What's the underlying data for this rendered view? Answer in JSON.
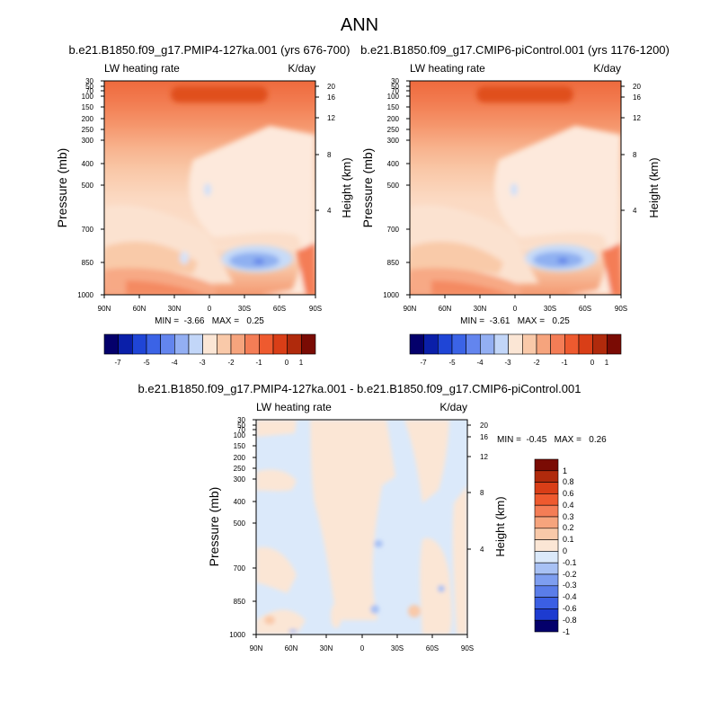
{
  "page": {
    "title": "ANN"
  },
  "chart_data": [
    {
      "type": "heatmap",
      "title": "b.e21.B1850.f09_g17.PMIP4-127ka.001 (yrs 676-700)",
      "left_label": "LW heating rate",
      "right_label": "K/day",
      "xlabel": "",
      "ylabel": "Pressure (mb)",
      "ylabel_right": "Height (km)",
      "x_ticks": [
        "90N",
        "60N",
        "30N",
        "0",
        "30S",
        "60S",
        "90S"
      ],
      "y_ticks": [
        "30",
        "50",
        "70",
        "100",
        "150",
        "200",
        "250",
        "300",
        "400",
        "500",
        "700",
        "850",
        "1000"
      ],
      "y_right_ticks": [
        "20",
        "16",
        "12",
        "8",
        "4"
      ],
      "y_scale": "log pressure",
      "min_text": "MIN =  -3.66   MAX =   0.25",
      "min": -3.66,
      "max": 0.25,
      "colorbar_labels": [
        "-7",
        "-5",
        "-4",
        "-3",
        "-2",
        "-1",
        "0",
        "1"
      ]
    },
    {
      "type": "heatmap",
      "title": "b.e21.B1850.f09_g17.CMIP6-piControl.001 (yrs 1176-1200)",
      "left_label": "LW heating rate",
      "right_label": "K/day",
      "xlabel": "",
      "ylabel": "Pressure (mb)",
      "ylabel_right": "Height (km)",
      "x_ticks": [
        "90N",
        "60N",
        "30N",
        "0",
        "30S",
        "60S",
        "90S"
      ],
      "y_ticks": [
        "30",
        "50",
        "70",
        "100",
        "150",
        "200",
        "250",
        "300",
        "400",
        "500",
        "700",
        "850",
        "1000"
      ],
      "y_right_ticks": [
        "20",
        "16",
        "12",
        "8",
        "4"
      ],
      "y_scale": "log pressure",
      "min_text": "MIN =  -3.61   MAX =   0.25",
      "min": -3.61,
      "max": 0.25,
      "colorbar_labels": [
        "-7",
        "-5",
        "-4",
        "-3",
        "-2",
        "-1",
        "0",
        "1"
      ]
    },
    {
      "type": "heatmap",
      "title": "b.e21.B1850.f09_g17.PMIP4-127ka.001 - b.e21.B1850.f09_g17.CMIP6-piControl.001",
      "left_label": "LW heating rate",
      "right_label": "K/day",
      "xlabel": "",
      "ylabel": "Pressure (mb)",
      "ylabel_right": "Height (km)",
      "x_ticks": [
        "90N",
        "60N",
        "30N",
        "0",
        "30S",
        "60S",
        "90S"
      ],
      "y_ticks": [
        "30",
        "50",
        "70",
        "100",
        "150",
        "200",
        "250",
        "300",
        "400",
        "500",
        "700",
        "850",
        "1000"
      ],
      "y_right_ticks": [
        "20",
        "16",
        "12",
        "8",
        "4"
      ],
      "y_scale": "log pressure",
      "min_text": "MIN =  -0.45   MAX =   0.26",
      "min": -0.45,
      "max": 0.26,
      "colorbar_labels": [
        "1",
        "0.8",
        "0.6",
        "0.4",
        "0.3",
        "0.2",
        "0.1",
        "0",
        "-0.1",
        "-0.2",
        "-0.3",
        "-0.4",
        "-0.6",
        "-0.8",
        "-1"
      ]
    }
  ],
  "colors": {
    "top_colorbar": [
      "#04006b",
      "#0a1fa9",
      "#1f45d6",
      "#3b63e6",
      "#6385ee",
      "#93aff3",
      "#c2d6f8",
      "#fbe6d5",
      "#f9c9a9",
      "#f6a47d",
      "#f47d56",
      "#ee5a2f",
      "#d93e17",
      "#b02a0c",
      "#7a0b04"
    ],
    "diff_colorbar": [
      "#7a0b04",
      "#b02a0c",
      "#d93e17",
      "#ee5a2f",
      "#f47d56",
      "#f6a47d",
      "#f9c9a9",
      "#fbe6d5",
      "#dbe9fa",
      "#a8c1f4",
      "#7e9ef0",
      "#5a7de9",
      "#3b5fe3",
      "#1d3bd0",
      "#04006b"
    ]
  }
}
